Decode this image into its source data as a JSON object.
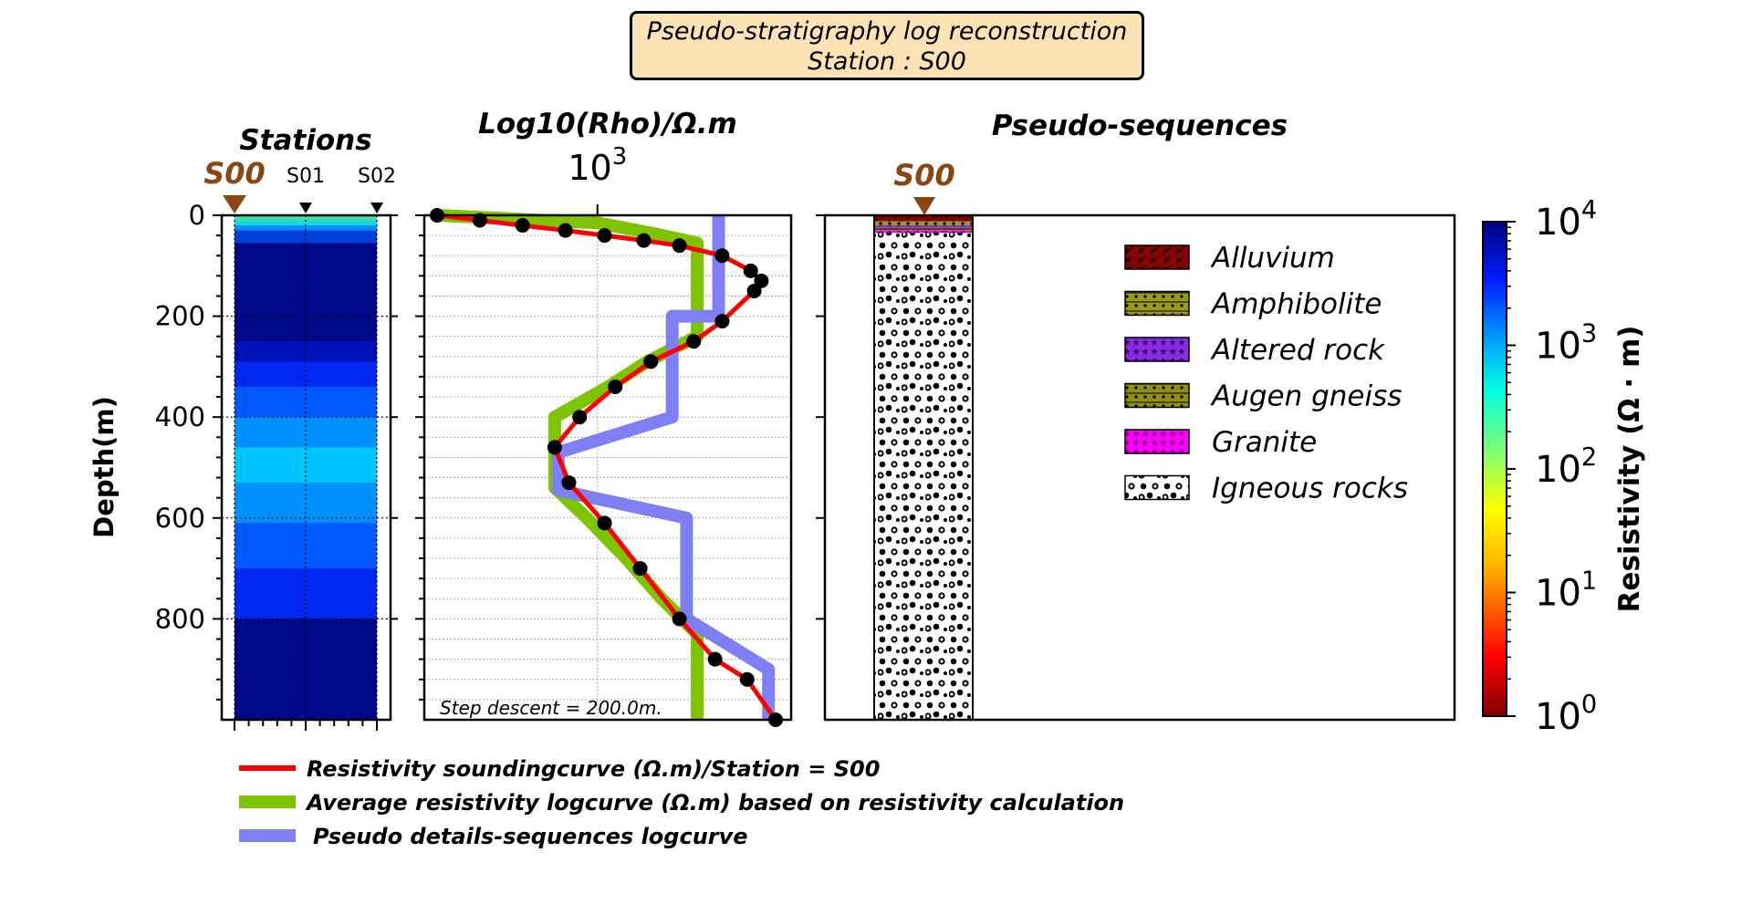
{
  "title": {
    "line1": "Pseudo-stratigraphy log reconstruction",
    "line2": "Station : S00"
  },
  "panels": {
    "stations_title": "Stations",
    "log_title": "Log10(Rho)/Ω.m",
    "log_tick_label": "10",
    "log_tick_exp": "3",
    "seq_title": "Pseudo-sequences",
    "depth_label": "Depth(m)",
    "step_descent": "Step descent = 200.0m.",
    "current_station": "S00",
    "colorbar_label": "Resistivity (Ω · m)"
  },
  "colors": {
    "station_marker": "#8b4513",
    "sounding": "#ff0000",
    "average": "#7fc400",
    "pseudo": "#7f7ff5"
  },
  "chart_data": {
    "type": "line",
    "y_axis": {
      "label": "Depth(m)",
      "ylim": [
        0,
        1000
      ],
      "ticks": [
        0,
        200,
        400,
        600,
        800
      ],
      "inverted": true
    },
    "x_axis": {
      "label": "Log10(Rho)/Ω.m",
      "scale": "log",
      "ticks": [
        1000
      ]
    },
    "stations": [
      "S00",
      "S01",
      "S02"
    ],
    "station_bands": [
      {
        "depth_top": 0,
        "depth_bottom": 10,
        "color": "#39e6a0"
      },
      {
        "depth_top": 10,
        "depth_bottom": 20,
        "color": "#1ad6e0"
      },
      {
        "depth_top": 20,
        "depth_bottom": 30,
        "color": "#0a8fff"
      },
      {
        "depth_top": 30,
        "depth_bottom": 55,
        "color": "#0040d8"
      },
      {
        "depth_top": 55,
        "depth_bottom": 250,
        "color": "#00088a"
      },
      {
        "depth_top": 250,
        "depth_bottom": 290,
        "color": "#0010b8"
      },
      {
        "depth_top": 290,
        "depth_bottom": 340,
        "color": "#0028f0"
      },
      {
        "depth_top": 340,
        "depth_bottom": 400,
        "color": "#0058ff"
      },
      {
        "depth_top": 400,
        "depth_bottom": 460,
        "color": "#0090ff"
      },
      {
        "depth_top": 460,
        "depth_bottom": 530,
        "color": "#00c4ff"
      },
      {
        "depth_top": 530,
        "depth_bottom": 610,
        "color": "#0090ff"
      },
      {
        "depth_top": 610,
        "depth_bottom": 700,
        "color": "#0058ff"
      },
      {
        "depth_top": 700,
        "depth_bottom": 800,
        "color": "#0028f0"
      },
      {
        "depth_top": 800,
        "depth_bottom": 1000,
        "color": "#00088a"
      }
    ],
    "series": [
      {
        "name": "Resistivity soundingcurve (Ω.m)/Station = S00",
        "log10_rho": [
          2.55,
          2.67,
          2.79,
          2.91,
          3.02,
          3.13,
          3.23,
          3.35,
          3.43,
          3.46,
          3.44,
          3.35,
          3.27,
          3.15,
          3.05,
          2.95,
          2.88,
          2.92,
          3.02,
          3.12,
          3.23,
          3.33,
          3.42,
          3.5
        ],
        "depth": [
          0,
          10,
          20,
          30,
          40,
          50,
          60,
          80,
          110,
          130,
          150,
          210,
          250,
          290,
          340,
          400,
          460,
          530,
          610,
          700,
          800,
          880,
          920,
          1000
        ],
        "markers": true
      },
      {
        "name": "Average resistivity logcurve (Ω.m) based on resistivity calculation",
        "log10_rho": [
          2.55,
          2.7,
          2.85,
          3.0,
          3.15,
          3.28,
          3.28,
          3.28,
          3.14,
          3.03,
          2.88,
          2.88,
          2.97,
          3.08,
          3.18,
          3.28,
          3.28
        ],
        "depth": [
          0,
          5,
          10,
          15,
          35,
          55,
          160,
          240,
          290,
          340,
          400,
          540,
          600,
          680,
          760,
          830,
          1000
        ]
      },
      {
        "name": "Pseudo details-sequences logcurve",
        "log10_rho": [
          3.34,
          3.34,
          3.21,
          3.21,
          2.89,
          2.89,
          3.25,
          3.25,
          3.48,
          3.48
        ],
        "depth": [
          0,
          200,
          200,
          400,
          470,
          545,
          600,
          800,
          900,
          1000
        ]
      }
    ],
    "colorbar": {
      "label": "Resistivity (Ω · m)",
      "scale": "log",
      "range": [
        1,
        10000
      ],
      "tick_base": "10",
      "tick_exponents": [
        "0",
        "1",
        "2",
        "3",
        "4"
      ]
    },
    "legend_lithology": [
      {
        "label": "Alluvium",
        "pattern": "alluvium"
      },
      {
        "label": "Amphibolite",
        "pattern": "amphibolite"
      },
      {
        "label": "Altered rock",
        "pattern": "altered"
      },
      {
        "label": "Augen gneiss",
        "pattern": "augen"
      },
      {
        "label": "Granite",
        "pattern": "granite"
      },
      {
        "label": "Igneous rocks",
        "pattern": "igneous"
      }
    ],
    "column_layers": [
      {
        "pattern": "alluvium",
        "depth_top": 0,
        "depth_bottom": 12
      },
      {
        "pattern": "amphibolite",
        "depth_top": 12,
        "depth_bottom": 20
      },
      {
        "pattern": "altered",
        "depth_top": 20,
        "depth_bottom": 25
      },
      {
        "pattern": "augen",
        "depth_top": 25,
        "depth_bottom": 30
      },
      {
        "pattern": "granite",
        "depth_top": 30,
        "depth_bottom": 35
      },
      {
        "pattern": "igneous",
        "depth_top": 35,
        "depth_bottom": 1000
      }
    ]
  }
}
